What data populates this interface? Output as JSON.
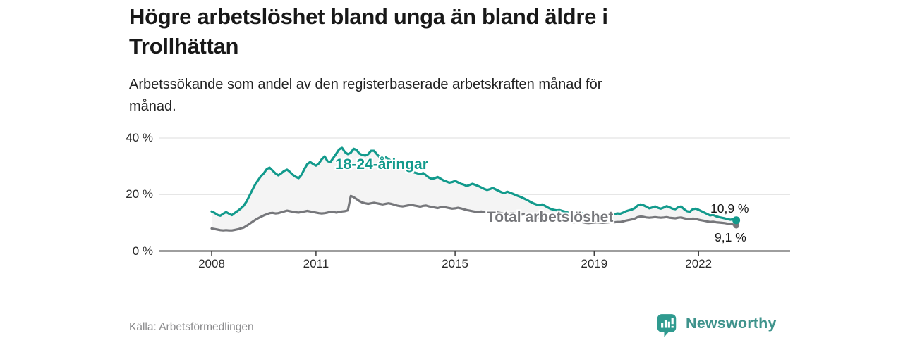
{
  "header": {
    "title_line1": "Högre arbetslöshet bland unga än bland äldre i",
    "title_line2": "Trollhättan",
    "subtitle_line1": "Arbetssökande som andel av den registerbaserade arbetskraften månad för",
    "subtitle_line2": "månad."
  },
  "footer": {
    "source": "Källa: Arbetsförmedlingen",
    "brand_name": "Newsworthy",
    "brand_icon": "newsworthy-bar-chart-bubble-icon",
    "brand_color": "#3f938c"
  },
  "chart_data": {
    "type": "line",
    "title": "Högre arbetslöshet bland unga än bland äldre i Trollhättan",
    "subtitle": "Arbetssökande som andel av den registerbaserade arbetskraften månad för månad.",
    "unit": "%",
    "x_interval": "monthly",
    "x_start": "2008-01",
    "x_end": "2023-02",
    "grid": "horizontal-only",
    "legend_position": "inline-labels",
    "band_fill": "#f4f4f4",
    "axis_color": "#3d3d3d",
    "grid_color": "#dedede",
    "ylim": [
      0,
      42
    ],
    "y_axis": {
      "ticks": [
        {
          "label": "0 %",
          "value": 0
        },
        {
          "label": "20 %",
          "value": 20
        },
        {
          "label": "40 %",
          "value": 40
        }
      ]
    },
    "x_axis": {
      "ticks": [
        {
          "label": "2008",
          "year": 2008
        },
        {
          "label": "2011",
          "year": 2011
        },
        {
          "label": "2015",
          "year": 2015
        },
        {
          "label": "2019",
          "year": 2019
        },
        {
          "label": "2022",
          "year": 2022
        }
      ]
    },
    "series": [
      {
        "name": "18-24-åringar",
        "color": "#129a8c",
        "end_label": "10,9 %",
        "end_value": 10.9,
        "values": [
          14.0,
          13.5,
          12.8,
          12.5,
          13.2,
          13.8,
          13.2,
          12.7,
          13.5,
          14.2,
          15.0,
          16.0,
          17.5,
          19.5,
          21.5,
          23.5,
          25.0,
          26.5,
          27.5,
          29.0,
          29.5,
          28.5,
          27.5,
          26.8,
          27.5,
          28.3,
          28.8,
          28.0,
          27.0,
          26.3,
          25.8,
          27.0,
          29.0,
          30.8,
          31.5,
          30.8,
          30.2,
          31.0,
          32.5,
          33.5,
          31.8,
          31.5,
          33.0,
          34.5,
          36.0,
          36.5,
          35.0,
          34.3,
          34.8,
          36.2,
          35.8,
          34.5,
          34.0,
          33.8,
          34.3,
          35.5,
          35.5,
          34.3,
          33.2,
          32.8,
          33.2,
          32.6,
          31.8,
          31.0,
          30.3,
          29.8,
          29.3,
          28.8,
          28.3,
          28.0,
          27.8,
          27.5,
          27.2,
          27.6,
          26.8,
          26.0,
          25.5,
          25.8,
          26.2,
          25.6,
          25.0,
          24.6,
          24.2,
          24.4,
          24.8,
          24.3,
          23.8,
          23.5,
          23.0,
          23.4,
          23.8,
          23.4,
          23.0,
          22.5,
          22.0,
          21.6,
          21.9,
          22.3,
          21.8,
          21.3,
          20.8,
          20.5,
          21.0,
          20.6,
          20.2,
          19.8,
          19.4,
          19.0,
          18.5,
          18.0,
          17.4,
          16.9,
          16.5,
          16.2,
          16.5,
          16.0,
          15.4,
          14.9,
          14.6,
          14.4,
          14.5,
          14.2,
          13.9,
          13.6,
          13.4,
          13.2,
          13.4,
          13.6,
          13.2,
          12.9,
          12.7,
          12.9,
          13.1,
          13.3,
          13.0,
          12.7,
          12.9,
          13.1,
          13.3,
          13.1,
          13.3,
          13.2,
          13.6,
          14.1,
          14.4,
          14.7,
          15.2,
          16.1,
          16.5,
          16.2,
          15.7,
          15.1,
          15.4,
          15.8,
          15.3,
          15.0,
          15.4,
          15.9,
          15.5,
          15.0,
          14.8,
          15.5,
          15.8,
          14.8,
          14.1,
          13.9,
          14.8,
          15.0,
          14.6,
          14.1,
          13.6,
          13.1,
          12.6,
          12.8,
          12.3,
          12.0,
          11.8,
          11.6,
          11.3,
          11.1,
          11.3,
          10.9
        ]
      },
      {
        "name": "Total arbetslöshet",
        "color": "#76777b",
        "end_label": "9,1 %",
        "end_value": 9.1,
        "values": [
          8.0,
          7.8,
          7.6,
          7.4,
          7.3,
          7.4,
          7.3,
          7.3,
          7.5,
          7.7,
          8.0,
          8.3,
          8.9,
          9.6,
          10.3,
          11.0,
          11.6,
          12.1,
          12.6,
          13.0,
          13.4,
          13.5,
          13.3,
          13.4,
          13.7,
          14.0,
          14.3,
          14.1,
          13.9,
          13.7,
          13.6,
          13.8,
          14.0,
          14.2,
          14.0,
          13.8,
          13.6,
          13.4,
          13.3,
          13.4,
          13.6,
          13.9,
          13.8,
          13.6,
          13.8,
          14.0,
          14.1,
          14.4,
          19.5,
          19.1,
          18.4,
          17.7,
          17.2,
          16.9,
          16.7,
          16.9,
          17.1,
          16.9,
          16.7,
          16.5,
          16.7,
          16.9,
          16.7,
          16.4,
          16.1,
          15.9,
          15.8,
          16.0,
          16.2,
          16.3,
          16.1,
          15.9,
          15.7,
          16.0,
          16.1,
          15.8,
          15.6,
          15.4,
          15.2,
          15.5,
          15.6,
          15.4,
          15.2,
          15.0,
          15.1,
          15.3,
          15.1,
          14.8,
          14.5,
          14.3,
          14.1,
          13.9,
          13.8,
          14.0,
          13.8,
          13.6,
          13.7,
          13.9,
          13.8,
          13.6,
          13.4,
          13.3,
          13.2,
          13.3,
          13.4,
          13.2,
          13.0,
          12.9,
          13.0,
          12.8,
          12.5,
          12.2,
          12.0,
          11.8,
          11.7,
          11.5,
          11.3,
          11.2,
          11.0,
          10.9,
          11.0,
          10.8,
          10.6,
          10.4,
          10.3,
          10.2,
          10.3,
          10.4,
          10.2,
          10.0,
          9.9,
          10.0,
          10.1,
          10.2,
          10.1,
          10.0,
          10.1,
          10.2,
          10.3,
          10.2,
          10.3,
          10.3,
          10.5,
          10.8,
          11.0,
          11.2,
          11.5,
          12.0,
          12.2,
          12.1,
          11.9,
          11.8,
          11.9,
          12.0,
          11.9,
          11.8,
          11.9,
          12.0,
          11.8,
          11.7,
          11.6,
          11.8,
          11.9,
          11.6,
          11.4,
          11.3,
          11.5,
          11.4,
          11.1,
          10.9,
          10.7,
          10.5,
          10.3,
          10.4,
          10.2,
          10.1,
          10.0,
          9.9,
          9.7,
          9.6,
          9.4,
          9.1
        ]
      }
    ]
  }
}
